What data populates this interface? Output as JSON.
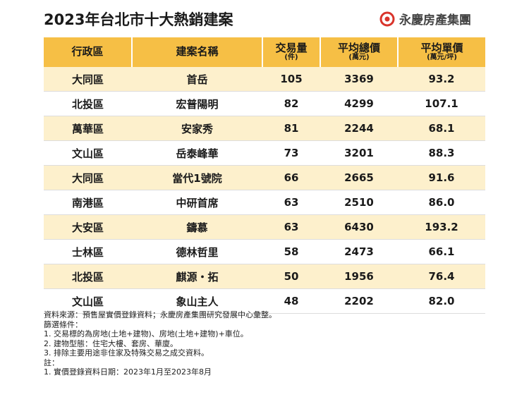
{
  "header": {
    "title": "2023年台北市十大熱銷建案",
    "brand": "永慶房產集團"
  },
  "table": {
    "columns": [
      {
        "label": "行政區"
      },
      {
        "label": "建案名稱"
      },
      {
        "label": "交易量",
        "unit": "(件)"
      },
      {
        "label": "平均總價",
        "unit": "(萬元)"
      },
      {
        "label": "平均單價",
        "unit": "(萬元/坪)"
      }
    ],
    "rows": [
      [
        "大同區",
        "首岳",
        "105",
        "3369",
        "93.2"
      ],
      [
        "北投區",
        "宏普陽明",
        "82",
        "4299",
        "107.1"
      ],
      [
        "萬華區",
        "安家秀",
        "81",
        "2244",
        "68.1"
      ],
      [
        "文山區",
        "岳泰峰華",
        "73",
        "3201",
        "88.3"
      ],
      [
        "大同區",
        "當代1號院",
        "66",
        "2665",
        "91.6"
      ],
      [
        "南港區",
        "中研首席",
        "63",
        "2510",
        "86.0"
      ],
      [
        "大安區",
        "鑄慕",
        "63",
        "6430",
        "193.2"
      ],
      [
        "士林區",
        "德林哲里",
        "58",
        "2473",
        "66.1"
      ],
      [
        "北投區",
        "麒源・拓",
        "50",
        "1956",
        "76.4"
      ],
      [
        "文山區",
        "象山主人",
        "48",
        "2202",
        "82.0"
      ]
    ]
  },
  "notes": [
    "資料來源：預售屋實價登錄資料；永慶房產集團研究發展中心彙整。",
    "篩選條件：",
    "1. 交易標的為房地(土地+建物)、房地(土地+建物)+車位。",
    "2. 建物型態：住宅大樓、套房、華廈。",
    "3. 排除主要用途非住家及特殊交易之成交資料。",
    "註：",
    "1. 實價登錄資料日期：2023年1月至2023年8月"
  ]
}
